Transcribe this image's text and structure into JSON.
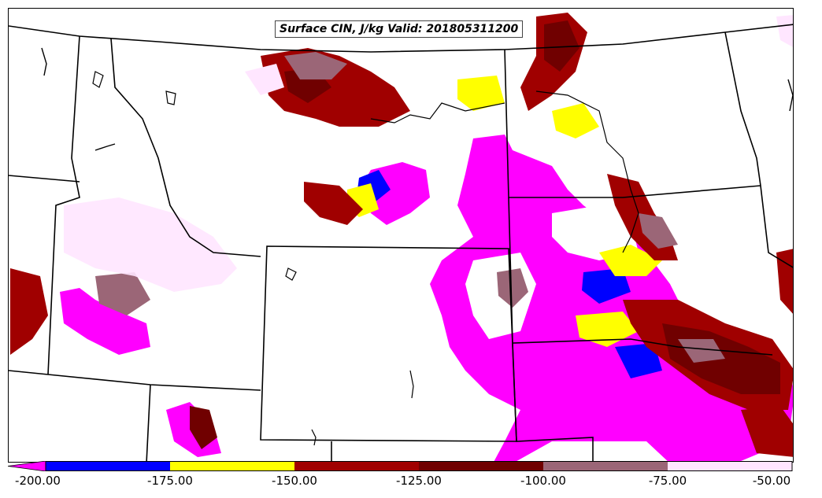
{
  "title": "Surface CIN, J/kg Valid: 201805311200",
  "colors": {
    "lt_-175": "#ff00ff",
    "-175_-150": "#0000ff",
    "-150_-125": "#ffff00",
    "-125_-100": "#a00000",
    "-100_-75": "#700000",
    "-75_-50": "#9b6677",
    "gt_-50": "#ffe6ff",
    "boundaries": "#000000"
  },
  "colorbar": {
    "ticks": [
      "-200.00",
      "-175.00",
      "-150.00",
      "-125.00",
      "-100.00",
      "-75.00",
      "-50.00"
    ],
    "bins": [
      {
        "color": "#0000ff"
      },
      {
        "color": "#ffff00"
      },
      {
        "color": "#a00000"
      },
      {
        "color": "#700000"
      },
      {
        "color": "#9b6677"
      },
      {
        "color": "#ffe6ff"
      }
    ],
    "underflow_color": "#ff00ff"
  }
}
